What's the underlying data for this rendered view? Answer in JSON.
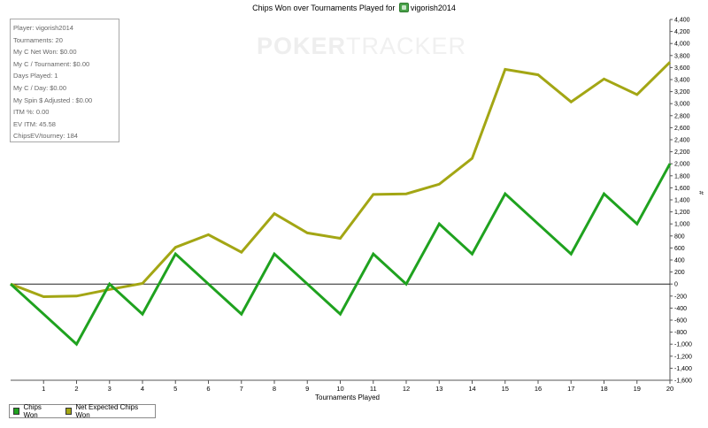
{
  "title": {
    "prefix": "Chips Won over Tournaments Played for",
    "player": "vigorish2014"
  },
  "watermark": {
    "poker": "POKER",
    "tracker": "TRACKER"
  },
  "stats": [
    "Player: vigorish2014",
    "Tournaments: 20",
    "My C Net Won: $0.00",
    "My C / Tournament: $0.00",
    "Days Played: 1",
    "My C / Day: $0.00",
    "My Spin $ Adjusted : $0.00",
    "ITM %: 0.00",
    "EV ITM: 45.58",
    "ChipsEV/tourney: 184"
  ],
  "legend": {
    "chips_won": "Chips Won",
    "net_expected": "Net Expected Chips Won"
  },
  "colors": {
    "chips_won": "#1fa21f",
    "net_expected": "#a3a614",
    "zero_line": "#222222",
    "axis": "#555555"
  },
  "chart_data": {
    "type": "line",
    "title": "Chips Won over Tournaments Played for vigorish2014",
    "xlabel": "Tournaments Played",
    "ylabel": "#",
    "x": [
      0,
      1,
      2,
      3,
      4,
      5,
      6,
      7,
      8,
      9,
      10,
      11,
      12,
      13,
      14,
      15,
      16,
      17,
      18,
      19,
      20
    ],
    "xticks": [
      1,
      2,
      3,
      4,
      5,
      6,
      7,
      8,
      9,
      10,
      11,
      12,
      13,
      14,
      15,
      16,
      17,
      18,
      19,
      20
    ],
    "xlim": [
      0,
      20
    ],
    "ylim": [
      -1600,
      4400
    ],
    "ytick_step": 200,
    "yticks": [
      "4,400",
      "4,200",
      "4,000",
      "3,800",
      "3,600",
      "3,400",
      "3,200",
      "3,000",
      "2,800",
      "2,600",
      "2,400",
      "2,200",
      "2,000",
      "1,800",
      "1,600",
      "1,400",
      "1,200",
      "1,000",
      "800",
      "600",
      "400",
      "200",
      "0",
      "-200",
      "-400",
      "-600",
      "-800",
      "-1,000",
      "-1,200",
      "-1,400",
      "-1,600"
    ],
    "series": [
      {
        "name": "Chips Won",
        "values": [
          0,
          -500,
          -1000,
          0,
          -500,
          500,
          0,
          -500,
          500,
          0,
          -500,
          500,
          0,
          1000,
          500,
          1500,
          1000,
          500,
          1500,
          1000,
          2000
        ]
      },
      {
        "name": "Net Expected Chips Won",
        "values": [
          0,
          -210,
          -200,
          -90,
          10,
          610,
          820,
          530,
          1170,
          850,
          760,
          1490,
          1500,
          1660,
          2090,
          3570,
          3480,
          3030,
          3410,
          3150,
          3690
        ]
      }
    ],
    "legend_position": "bottom-left",
    "grid": false
  }
}
